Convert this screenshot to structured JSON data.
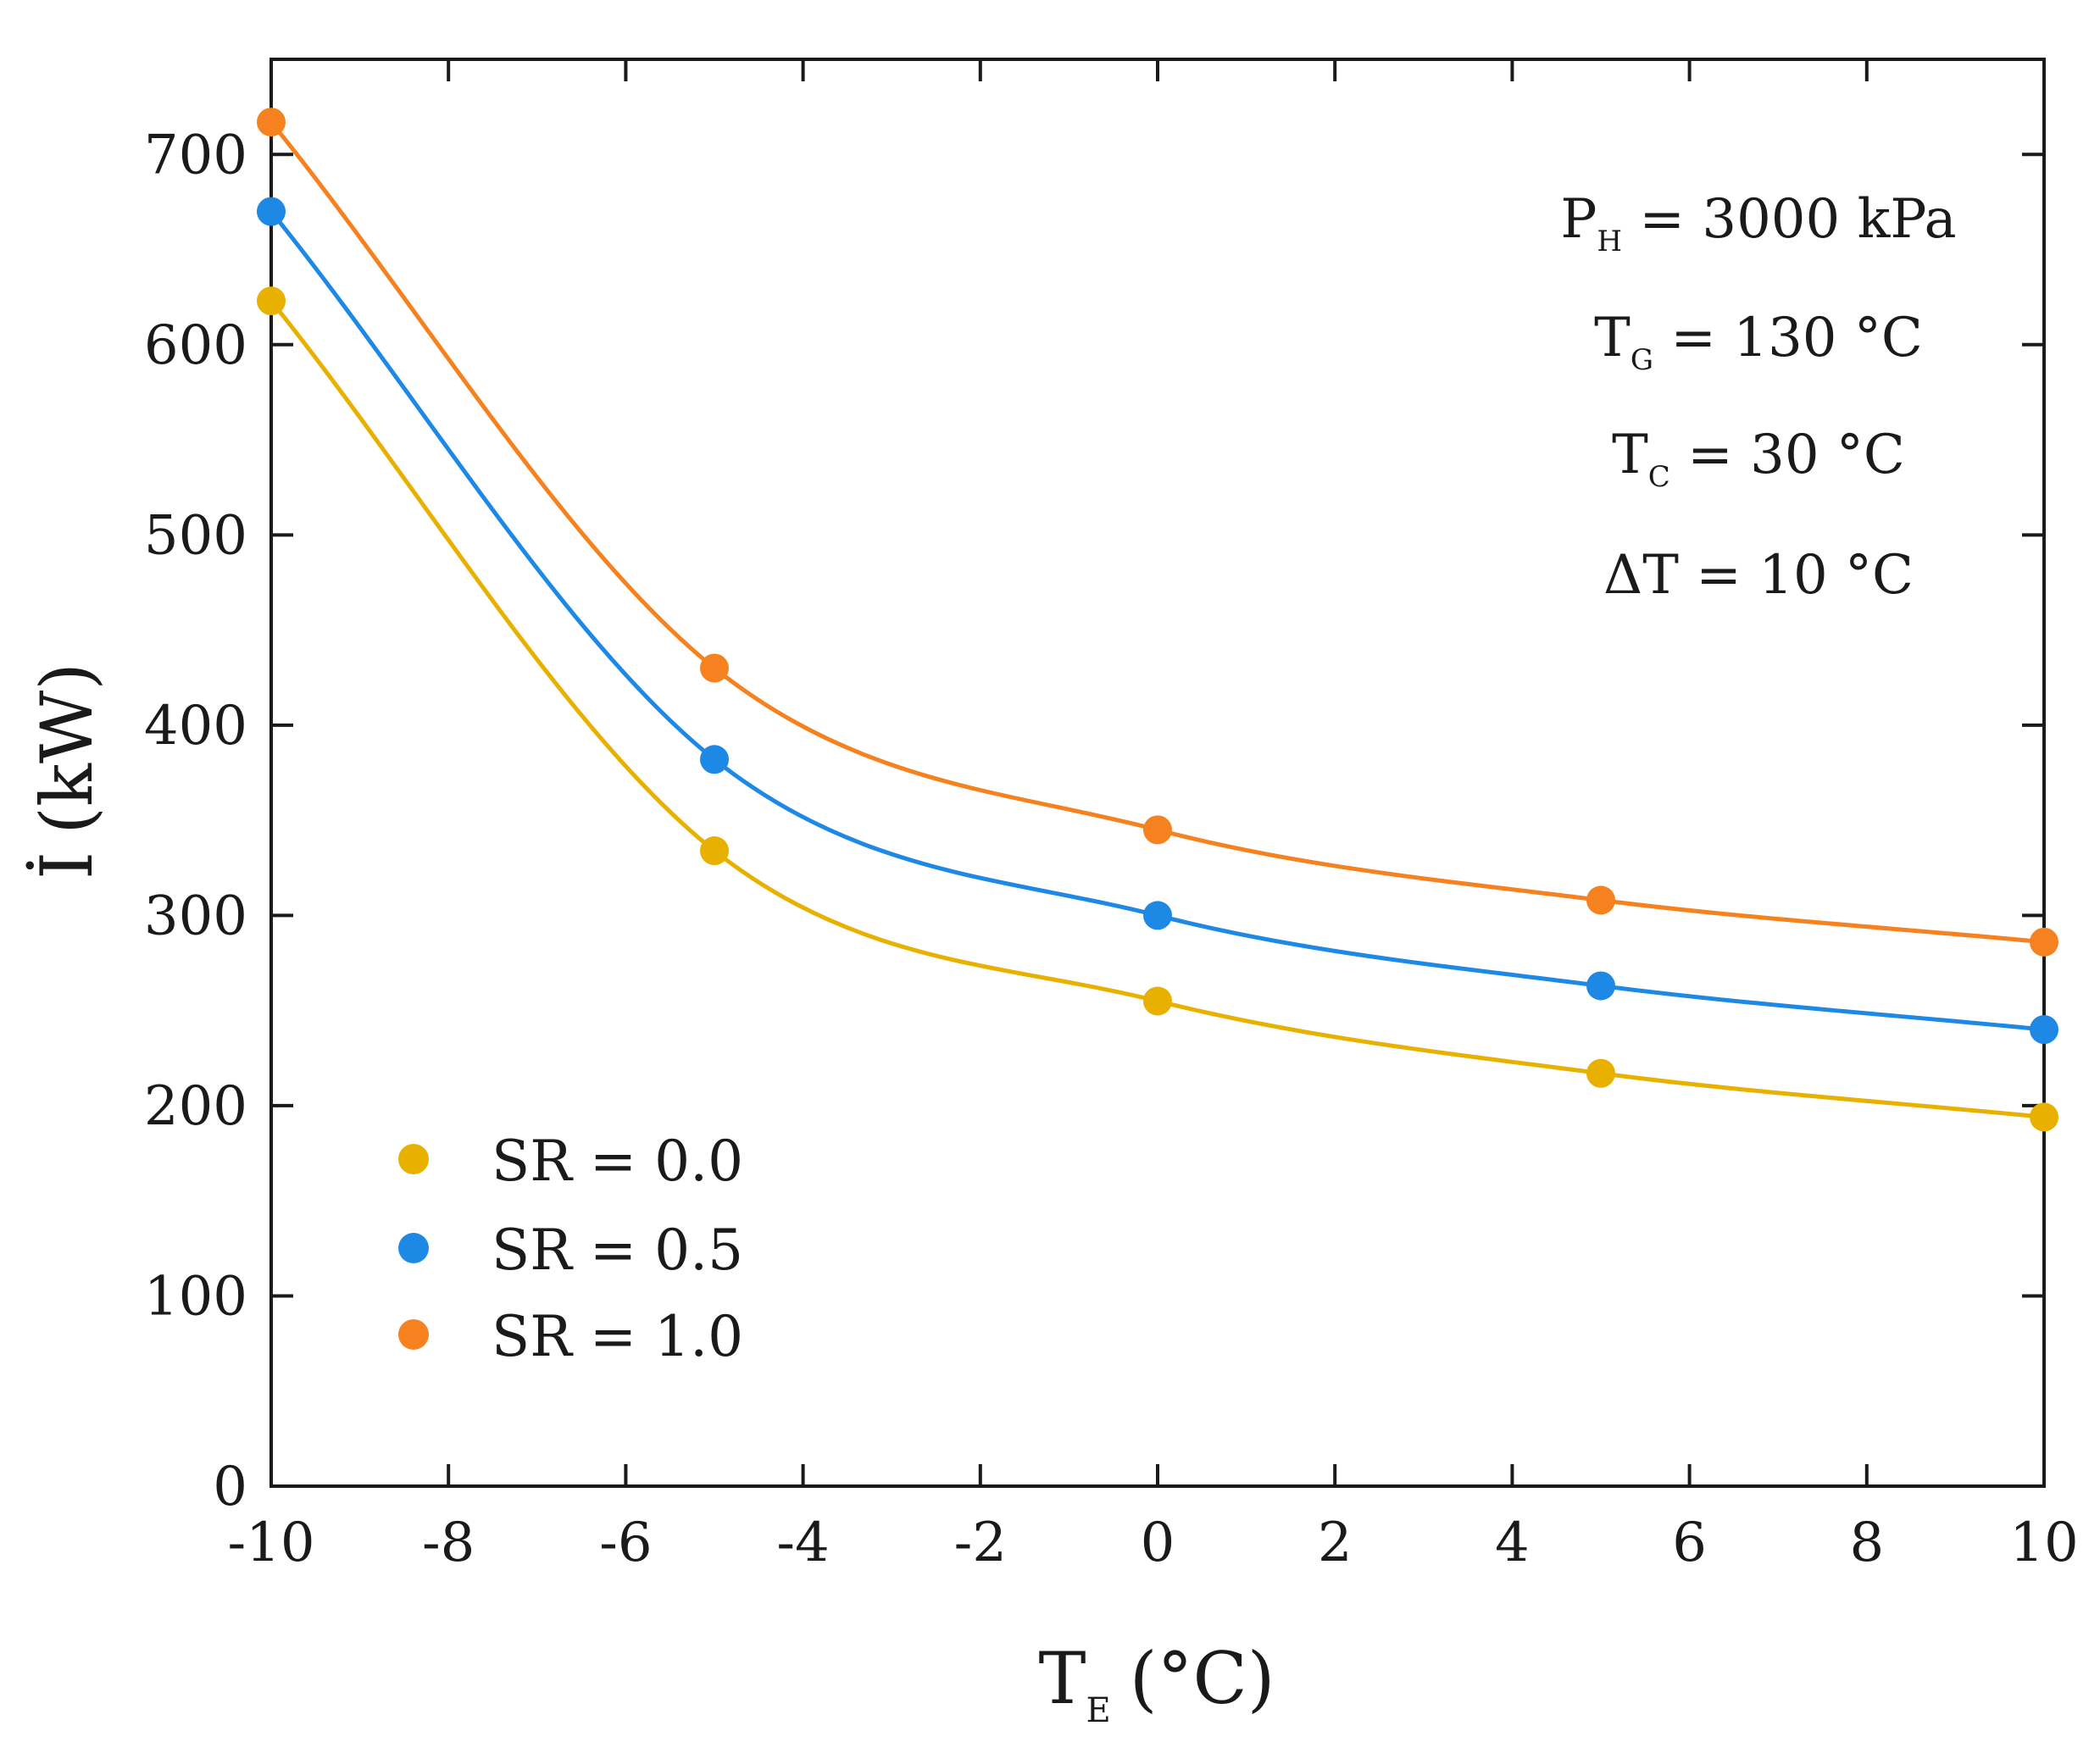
{
  "chart_data": {
    "type": "line",
    "xlabel": {
      "main": "T",
      "sub": "E",
      "unit": "(°C)"
    },
    "ylabel": {
      "main": "İ",
      "unit": "(kW)"
    },
    "xlim": [
      -10,
      10
    ],
    "ylim": [
      0,
      750
    ],
    "x_ticks": [
      -10,
      -8,
      -6,
      -4,
      -2,
      0,
      2,
      4,
      6,
      8,
      10
    ],
    "y_ticks": [
      0,
      100,
      200,
      300,
      400,
      500,
      600,
      700
    ],
    "x_tick_labels": [
      "-10",
      "-8",
      "-6",
      "-4",
      "-2",
      "0",
      "2",
      "4",
      "6",
      "8",
      "10"
    ],
    "y_tick_labels": [
      "0",
      "100",
      "200",
      "300",
      "400",
      "500",
      "600",
      "700"
    ],
    "x": [
      -10,
      -5,
      0,
      5,
      10
    ],
    "series": [
      {
        "name": "SR = 0.0",
        "color": "#E8B100",
        "values": [
          623,
          334,
          255,
          217,
          194
        ]
      },
      {
        "name": "SR = 0.5",
        "color": "#1E88E5",
        "values": [
          670,
          382,
          300,
          263,
          240
        ]
      },
      {
        "name": "SR = 1.0",
        "color": "#F5821F",
        "values": [
          717,
          430,
          345,
          308,
          286
        ]
      }
    ],
    "annotations": [
      {
        "main": "P",
        "sub": "H",
        "rest": " = 3000 kPa"
      },
      {
        "main": "T",
        "sub": "G",
        "rest": " = 130 °C"
      },
      {
        "main": "T",
        "sub": "C",
        "rest": " = 30 °C"
      },
      {
        "main": "ΔT = 10 °C",
        "sub": "",
        "rest": ""
      }
    ],
    "legend_position": "bottom-left",
    "grid": false
  }
}
